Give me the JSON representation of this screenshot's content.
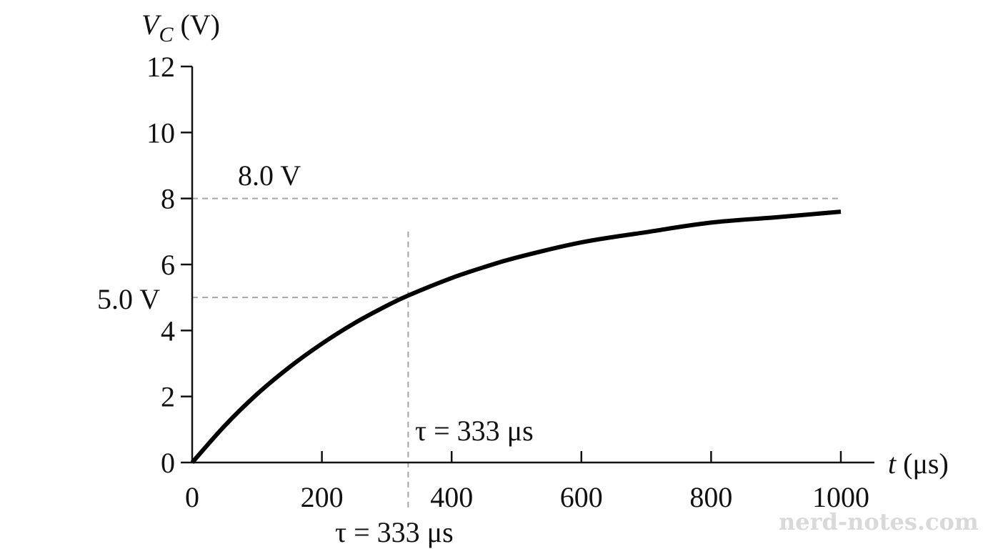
{
  "chart_data": {
    "type": "line",
    "xlabel_var": "t",
    "xlabel_unit": " (μs)",
    "ylabel_var": "V",
    "ylabel_sub": "C",
    "ylabel_unit": " (V)",
    "xlim": [
      0,
      1050
    ],
    "ylim": [
      0,
      12
    ],
    "xticks": [
      0,
      200,
      400,
      600,
      800,
      1000
    ],
    "xtick_labels": [
      "0",
      "200",
      "400",
      "600",
      "800",
      "1000"
    ],
    "yticks": [
      0,
      2,
      4,
      6,
      8,
      10,
      12
    ],
    "ytick_labels": [
      "0",
      "2",
      "4",
      "6",
      "8",
      "10",
      "12"
    ],
    "series": [
      {
        "color": "#000000",
        "x": [
          0,
          50,
          100,
          150,
          200,
          250,
          300,
          333,
          400,
          450,
          500,
          600,
          700,
          800,
          900,
          1000
        ],
        "y": [
          0,
          1.11,
          2.07,
          2.89,
          3.6,
          4.22,
          4.75,
          5.06,
          5.59,
          5.92,
          6.21,
          6.67,
          6.98,
          7.27,
          7.43,
          7.6
        ]
      }
    ],
    "reference_lines": {
      "h_high": 8,
      "h_mid": 5,
      "tau": 333
    },
    "annotations": {
      "v_high": "8.0 V",
      "v_mid": "5.0 V",
      "tau_upper": "τ = 333 μs",
      "tau_lower": "τ = 333 μs"
    },
    "grid": false,
    "legend": "none",
    "dashed_color": "#a6a6a6"
  },
  "watermark": "nerd-notes.com"
}
